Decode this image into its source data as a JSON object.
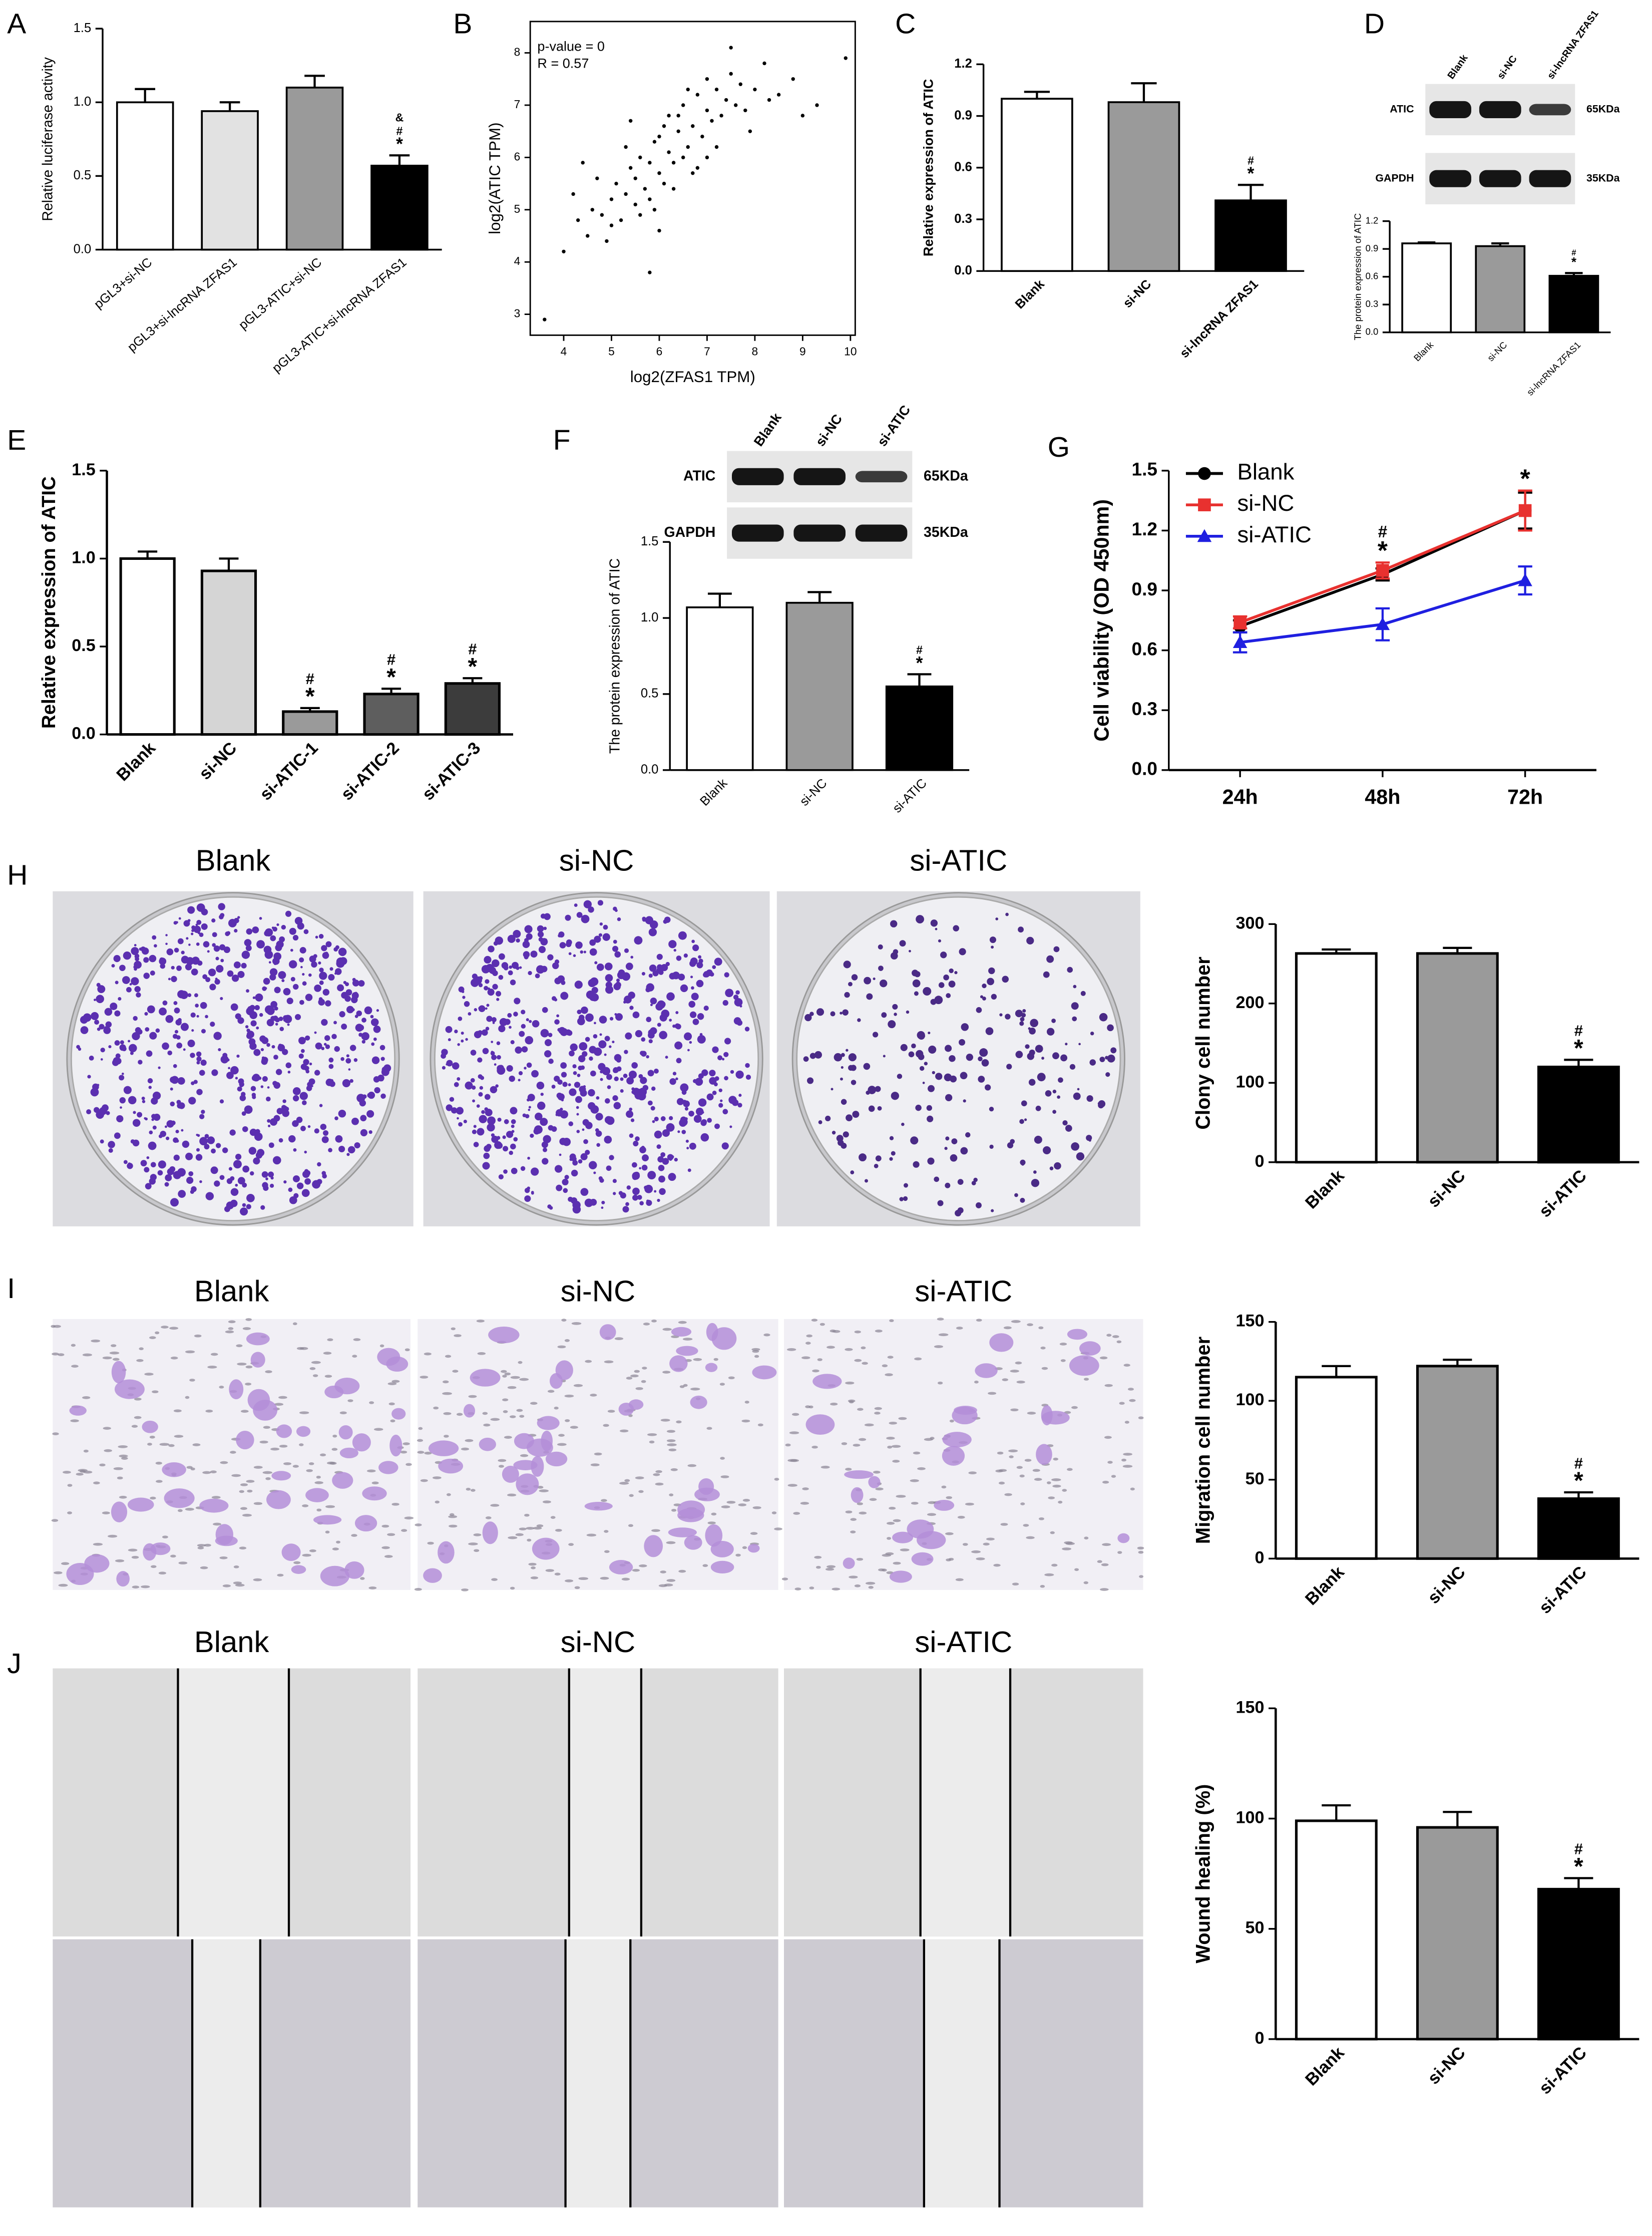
{
  "chart_data": [
    {
      "type": "bar",
      "panel": "A",
      "ylabel": "Relative luciferase activity",
      "categories": [
        "pGL3+si-NC",
        "pGL3+si-lncRNA ZFAS1",
        "pGL3-ATIC+si-NC",
        "pGL3-ATIC+si-lncRNA ZFAS1"
      ],
      "values": [
        1.0,
        0.94,
        1.1,
        0.57
      ],
      "errors": [
        0.09,
        0.06,
        0.08,
        0.07
      ],
      "colors": [
        "#ffffff",
        "#e2e2e2",
        "#9a9a9a",
        "#000000"
      ],
      "ylim": [
        0,
        1.5
      ],
      "yticks": [
        {
          "value": 0,
          "label": "0.0"
        },
        0.5,
        {
          "value": 1,
          "label": "1.0"
        },
        1.5
      ],
      "significance": [
        {
          "index": 3,
          "marks": [
            "&",
            "#",
            "*"
          ]
        }
      ]
    },
    {
      "type": "scatter",
      "panel": "B",
      "xlabel": "log2(ZFAS1 TPM)",
      "ylabel": "log2(ATIC TPM)",
      "annotations": [
        "p-value = 0",
        "R = 0.57"
      ],
      "x": [
        4.0,
        4.3,
        4.5,
        4.6,
        4.8,
        4.9,
        5.0,
        5.1,
        5.2,
        5.3,
        5.4,
        5.5,
        5.5,
        5.6,
        5.7,
        5.8,
        5.8,
        5.9,
        6.0,
        6.0,
        6.1,
        6.2,
        6.2,
        6.3,
        6.4,
        6.5,
        6.5,
        6.6,
        6.7,
        6.8,
        6.9,
        7.0,
        7.0,
        7.1,
        7.2,
        7.3,
        7.4,
        7.5,
        7.6,
        7.7,
        7.8,
        8.0,
        8.2,
        8.5,
        8.8,
        9.0,
        9.3,
        9.9,
        3.6,
        4.2,
        4.7,
        5.0,
        5.3,
        5.6,
        5.9,
        6.1,
        6.3,
        6.6,
        6.8,
        7.2,
        7.5,
        7.9,
        8.3,
        5.4,
        6.0,
        6.7,
        4.4,
        5.8,
        6.4,
        7.0
      ],
      "y": [
        4.2,
        4.8,
        4.5,
        5.0,
        4.9,
        4.4,
        5.2,
        5.5,
        4.8,
        5.3,
        5.8,
        5.1,
        5.6,
        6.0,
        5.4,
        5.9,
        5.2,
        6.3,
        5.7,
        6.4,
        5.5,
        6.1,
        6.8,
        5.9,
        6.5,
        6.0,
        7.0,
        6.2,
        6.6,
        7.2,
        6.4,
        6.9,
        7.5,
        6.7,
        7.3,
        6.8,
        7.1,
        7.6,
        7.0,
        7.4,
        6.9,
        7.3,
        7.8,
        7.2,
        7.5,
        6.8,
        7.0,
        7.9,
        2.9,
        5.3,
        5.6,
        4.7,
        6.2,
        4.9,
        5.0,
        6.6,
        5.4,
        7.3,
        5.8,
        6.2,
        8.1,
        6.5,
        7.1,
        6.7,
        4.6,
        5.7,
        5.9,
        3.8,
        6.8,
        6.0
      ],
      "color": "#000000",
      "xlim": [
        3.3,
        10.1
      ],
      "ylim": [
        2.6,
        8.6
      ],
      "xticks": [
        4,
        5,
        6,
        7,
        8,
        9,
        10
      ],
      "yticks": [
        3,
        4,
        5,
        6,
        7,
        8
      ]
    },
    {
      "type": "bar",
      "panel": "C",
      "ylabel": "Relative expression of ATIC",
      "categories": [
        "Blank",
        "si-NC",
        "si-lncRNA ZFAS1"
      ],
      "values": [
        1.0,
        0.98,
        0.41
      ],
      "errors": [
        0.04,
        0.11,
        0.09
      ],
      "colors": [
        "#ffffff",
        "#9a9a9a",
        "#000000"
      ],
      "ylim": [
        0,
        1.2
      ],
      "yticks": [
        {
          "value": 0,
          "label": "0.0"
        },
        0.3,
        0.6,
        0.9,
        1.2
      ],
      "significance": [
        {
          "index": 2,
          "marks": [
            "#",
            "*"
          ]
        }
      ]
    },
    {
      "type": "bar",
      "panel": "D",
      "ylabel": "The protein expression of ATIC",
      "blot": {
        "lanes": [
          "Blank",
          "si-NC",
          "si-lncRNA ZFAS1"
        ],
        "rows": [
          {
            "name": "ATIC",
            "size": "65KDa"
          },
          {
            "name": "GAPDH",
            "size": "35KDa"
          }
        ]
      },
      "categories": [
        "Blank",
        "si-NC",
        "si-lncRNA ZFAS1"
      ],
      "values": [
        0.96,
        0.93,
        0.61
      ],
      "errors": [
        0.01,
        0.03,
        0.03
      ],
      "colors": [
        "#ffffff",
        "#9a9a9a",
        "#000000"
      ],
      "ylim": [
        0,
        1.2
      ],
      "yticks": [
        {
          "value": 0,
          "label": "0.0"
        },
        0.3,
        0.6,
        0.9,
        1.2
      ],
      "significance": [
        {
          "index": 2,
          "marks": [
            "#",
            "*"
          ]
        }
      ]
    },
    {
      "type": "bar",
      "panel": "E",
      "ylabel": "Relative expression of ATIC",
      "categories": [
        "Blank",
        "si-NC",
        "si-ATIC-1",
        "si-ATIC-2",
        "si-ATIC-3"
      ],
      "values": [
        1.0,
        0.93,
        0.13,
        0.23,
        0.29
      ],
      "errors": [
        0.04,
        0.07,
        0.02,
        0.03,
        0.03
      ],
      "colors": [
        "#ffffff",
        "#d5d5d5",
        "#9a9a9a",
        "#5e5e5e",
        "#3c3c3c"
      ],
      "ylim": [
        0,
        1.5
      ],
      "yticks": [
        {
          "value": 0,
          "label": "0.0"
        },
        0.5,
        {
          "value": 1,
          "label": "1.0"
        },
        1.5
      ],
      "significance": [
        {
          "index": 2,
          "marks": [
            "#",
            "*"
          ]
        },
        {
          "index": 3,
          "marks": [
            "#",
            "*"
          ]
        },
        {
          "index": 4,
          "marks": [
            "#",
            "*"
          ]
        }
      ]
    },
    {
      "type": "bar",
      "panel": "F",
      "ylabel": "The protein expression of ATIC",
      "blot": {
        "lanes": [
          "Blank",
          "si-NC",
          "si-ATIC"
        ],
        "rows": [
          {
            "name": "ATIC",
            "size": "65KDa"
          },
          {
            "name": "GAPDH",
            "size": "35KDa"
          }
        ]
      },
      "categories": [
        "Blank",
        "si-NC",
        "si-ATIC"
      ],
      "values": [
        1.07,
        1.1,
        0.55
      ],
      "errors": [
        0.09,
        0.07,
        0.08
      ],
      "colors": [
        "#ffffff",
        "#9a9a9a",
        "#000000"
      ],
      "ylim": [
        0,
        1.5
      ],
      "yticks": [
        {
          "value": 0,
          "label": "0.0"
        },
        0.5,
        {
          "value": 1,
          "label": "1.0"
        },
        1.5
      ],
      "significance": [
        {
          "index": 2,
          "marks": [
            "#",
            "*"
          ]
        }
      ]
    },
    {
      "type": "line",
      "panel": "G",
      "ylabel": "Cell viability (OD 450nm)",
      "categories": [
        "24h",
        "48h",
        "72h"
      ],
      "series": [
        {
          "name": "Blank",
          "color": "#000000",
          "marker": "circle",
          "values": [
            0.72,
            0.98,
            1.3
          ],
          "errors": [
            0.03,
            0.03,
            0.09
          ]
        },
        {
          "name": "si-NC",
          "color": "#e8312f",
          "marker": "square",
          "values": [
            0.74,
            1.0,
            1.3
          ],
          "errors": [
            0.03,
            0.04,
            0.1
          ]
        },
        {
          "name": "si-ATIC",
          "color": "#1f1fe0",
          "marker": "triangle",
          "values": [
            0.64,
            0.73,
            0.95
          ],
          "errors": [
            0.05,
            0.08,
            0.07
          ]
        }
      ],
      "ylim": [
        0,
        1.5
      ],
      "yticks": [
        {
          "value": 0,
          "label": "0.0"
        },
        0.3,
        0.6,
        0.9,
        1.2,
        1.5
      ],
      "significance": [
        {
          "index": 1,
          "marks": [
            "#",
            "*"
          ]
        },
        {
          "index": 2,
          "marks": [
            "*"
          ]
        }
      ]
    },
    {
      "type": "bar",
      "panel": "H",
      "ylabel": "Clony cell number",
      "photo_labels": [
        "Blank",
        "si-NC",
        "si-ATIC"
      ],
      "categories": [
        "Blank",
        "si-NC",
        "si-ATIC"
      ],
      "values": [
        263,
        263,
        120
      ],
      "errors": [
        5,
        7,
        9
      ],
      "colors": [
        "#ffffff",
        "#9a9a9a",
        "#000000"
      ],
      "ylim": [
        0,
        300
      ],
      "yticks": [
        0,
        100,
        200,
        300
      ],
      "significance": [
        {
          "index": 2,
          "marks": [
            "#",
            "*"
          ]
        }
      ]
    },
    {
      "type": "bar",
      "panel": "I",
      "ylabel": "Migration cell number",
      "photo_labels": [
        "Blank",
        "si-NC",
        "si-ATIC"
      ],
      "categories": [
        "Blank",
        "si-NC",
        "si-ATIC"
      ],
      "values": [
        115,
        122,
        38
      ],
      "errors": [
        7,
        4,
        4
      ],
      "colors": [
        "#ffffff",
        "#9a9a9a",
        "#000000"
      ],
      "ylim": [
        0,
        150
      ],
      "yticks": [
        0,
        50,
        100,
        150
      ],
      "significance": [
        {
          "index": 2,
          "marks": [
            "#",
            "*"
          ]
        }
      ]
    },
    {
      "type": "bar",
      "panel": "J",
      "ylabel": "Wound healing (%)",
      "photo_labels": [
        "Blank",
        "si-NC",
        "si-ATIC"
      ],
      "categories": [
        "Blank",
        "si-NC",
        "si-ATIC"
      ],
      "values": [
        99,
        96,
        68
      ],
      "errors": [
        7,
        7,
        5
      ],
      "colors": [
        "#ffffff",
        "#9a9a9a",
        "#000000"
      ],
      "ylim": [
        0,
        150
      ],
      "yticks": [
        0,
        50,
        100,
        150
      ],
      "significance": [
        {
          "index": 2,
          "marks": [
            "#",
            "*"
          ]
        }
      ]
    }
  ]
}
